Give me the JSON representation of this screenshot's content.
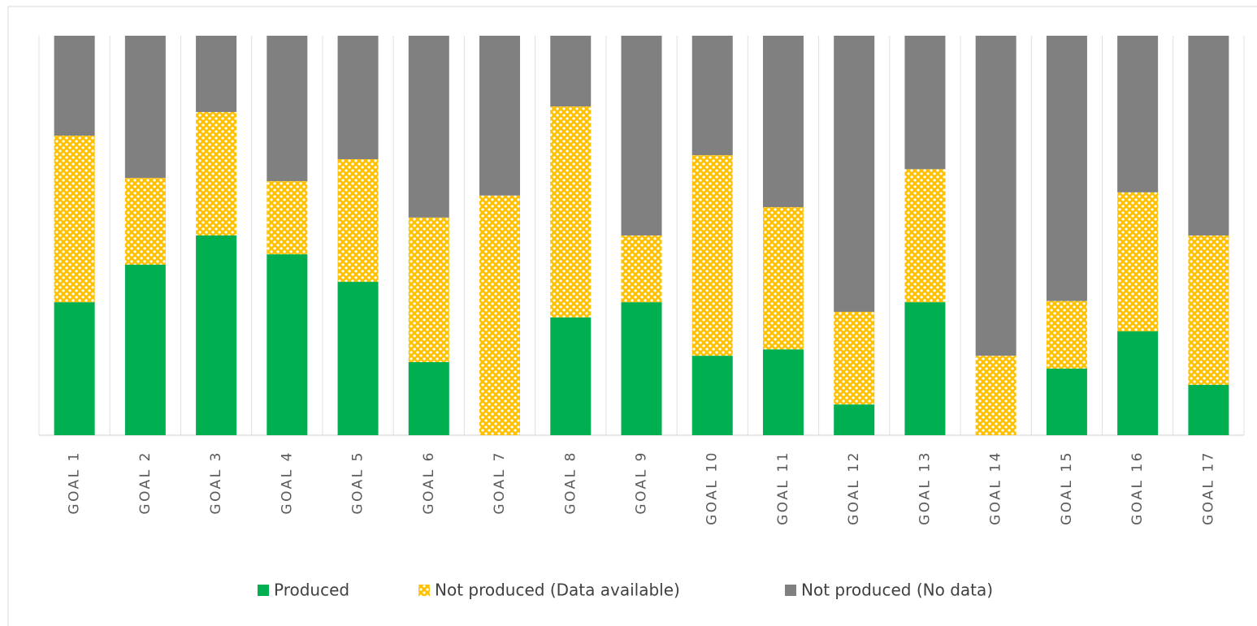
{
  "chart_data": {
    "type": "stacked_bar",
    "categories": [
      "GOAL 1",
      "GOAL 2",
      "GOAL 3",
      "GOAL 4",
      "GOAL 5",
      "GOAL 6",
      "GOAL 7",
      "GOAL 8",
      "GOAL 9",
      "GOAL 10",
      "GOAL 11",
      "GOAL 12",
      "GOAL 13",
      "GOAL 14",
      "GOAL 15",
      "GOAL 16",
      "GOAL 17"
    ],
    "series": [
      {
        "name": "Produced",
        "color": "#00b050",
        "values": [
          33.3,
          42.7,
          50,
          45.3,
          38.4,
          18.3,
          0,
          29.5,
          33.3,
          19.9,
          21.5,
          7.7,
          33.3,
          0,
          16.7,
          26,
          12.6
        ]
      },
      {
        "name": "Not produced (Data available)",
        "color": "#ffc000",
        "values": [
          41.7,
          21.7,
          30.9,
          18.3,
          30.7,
          36.2,
          60,
          52.8,
          16.7,
          50.2,
          35.6,
          23.2,
          33.3,
          19.9,
          16.9,
          34.8,
          37.4
        ]
      },
      {
        "name": "Not produced (No data)",
        "color": "#808080",
        "values": [
          25,
          35.6,
          19.1,
          36.4,
          30.9,
          45.5,
          40,
          17.7,
          50,
          29.9,
          42.9,
          69.1,
          33.4,
          80.1,
          66.4,
          39.2,
          50
        ]
      }
    ],
    "ylim": [
      0,
      100
    ],
    "grid": true,
    "legend": "bottom"
  }
}
